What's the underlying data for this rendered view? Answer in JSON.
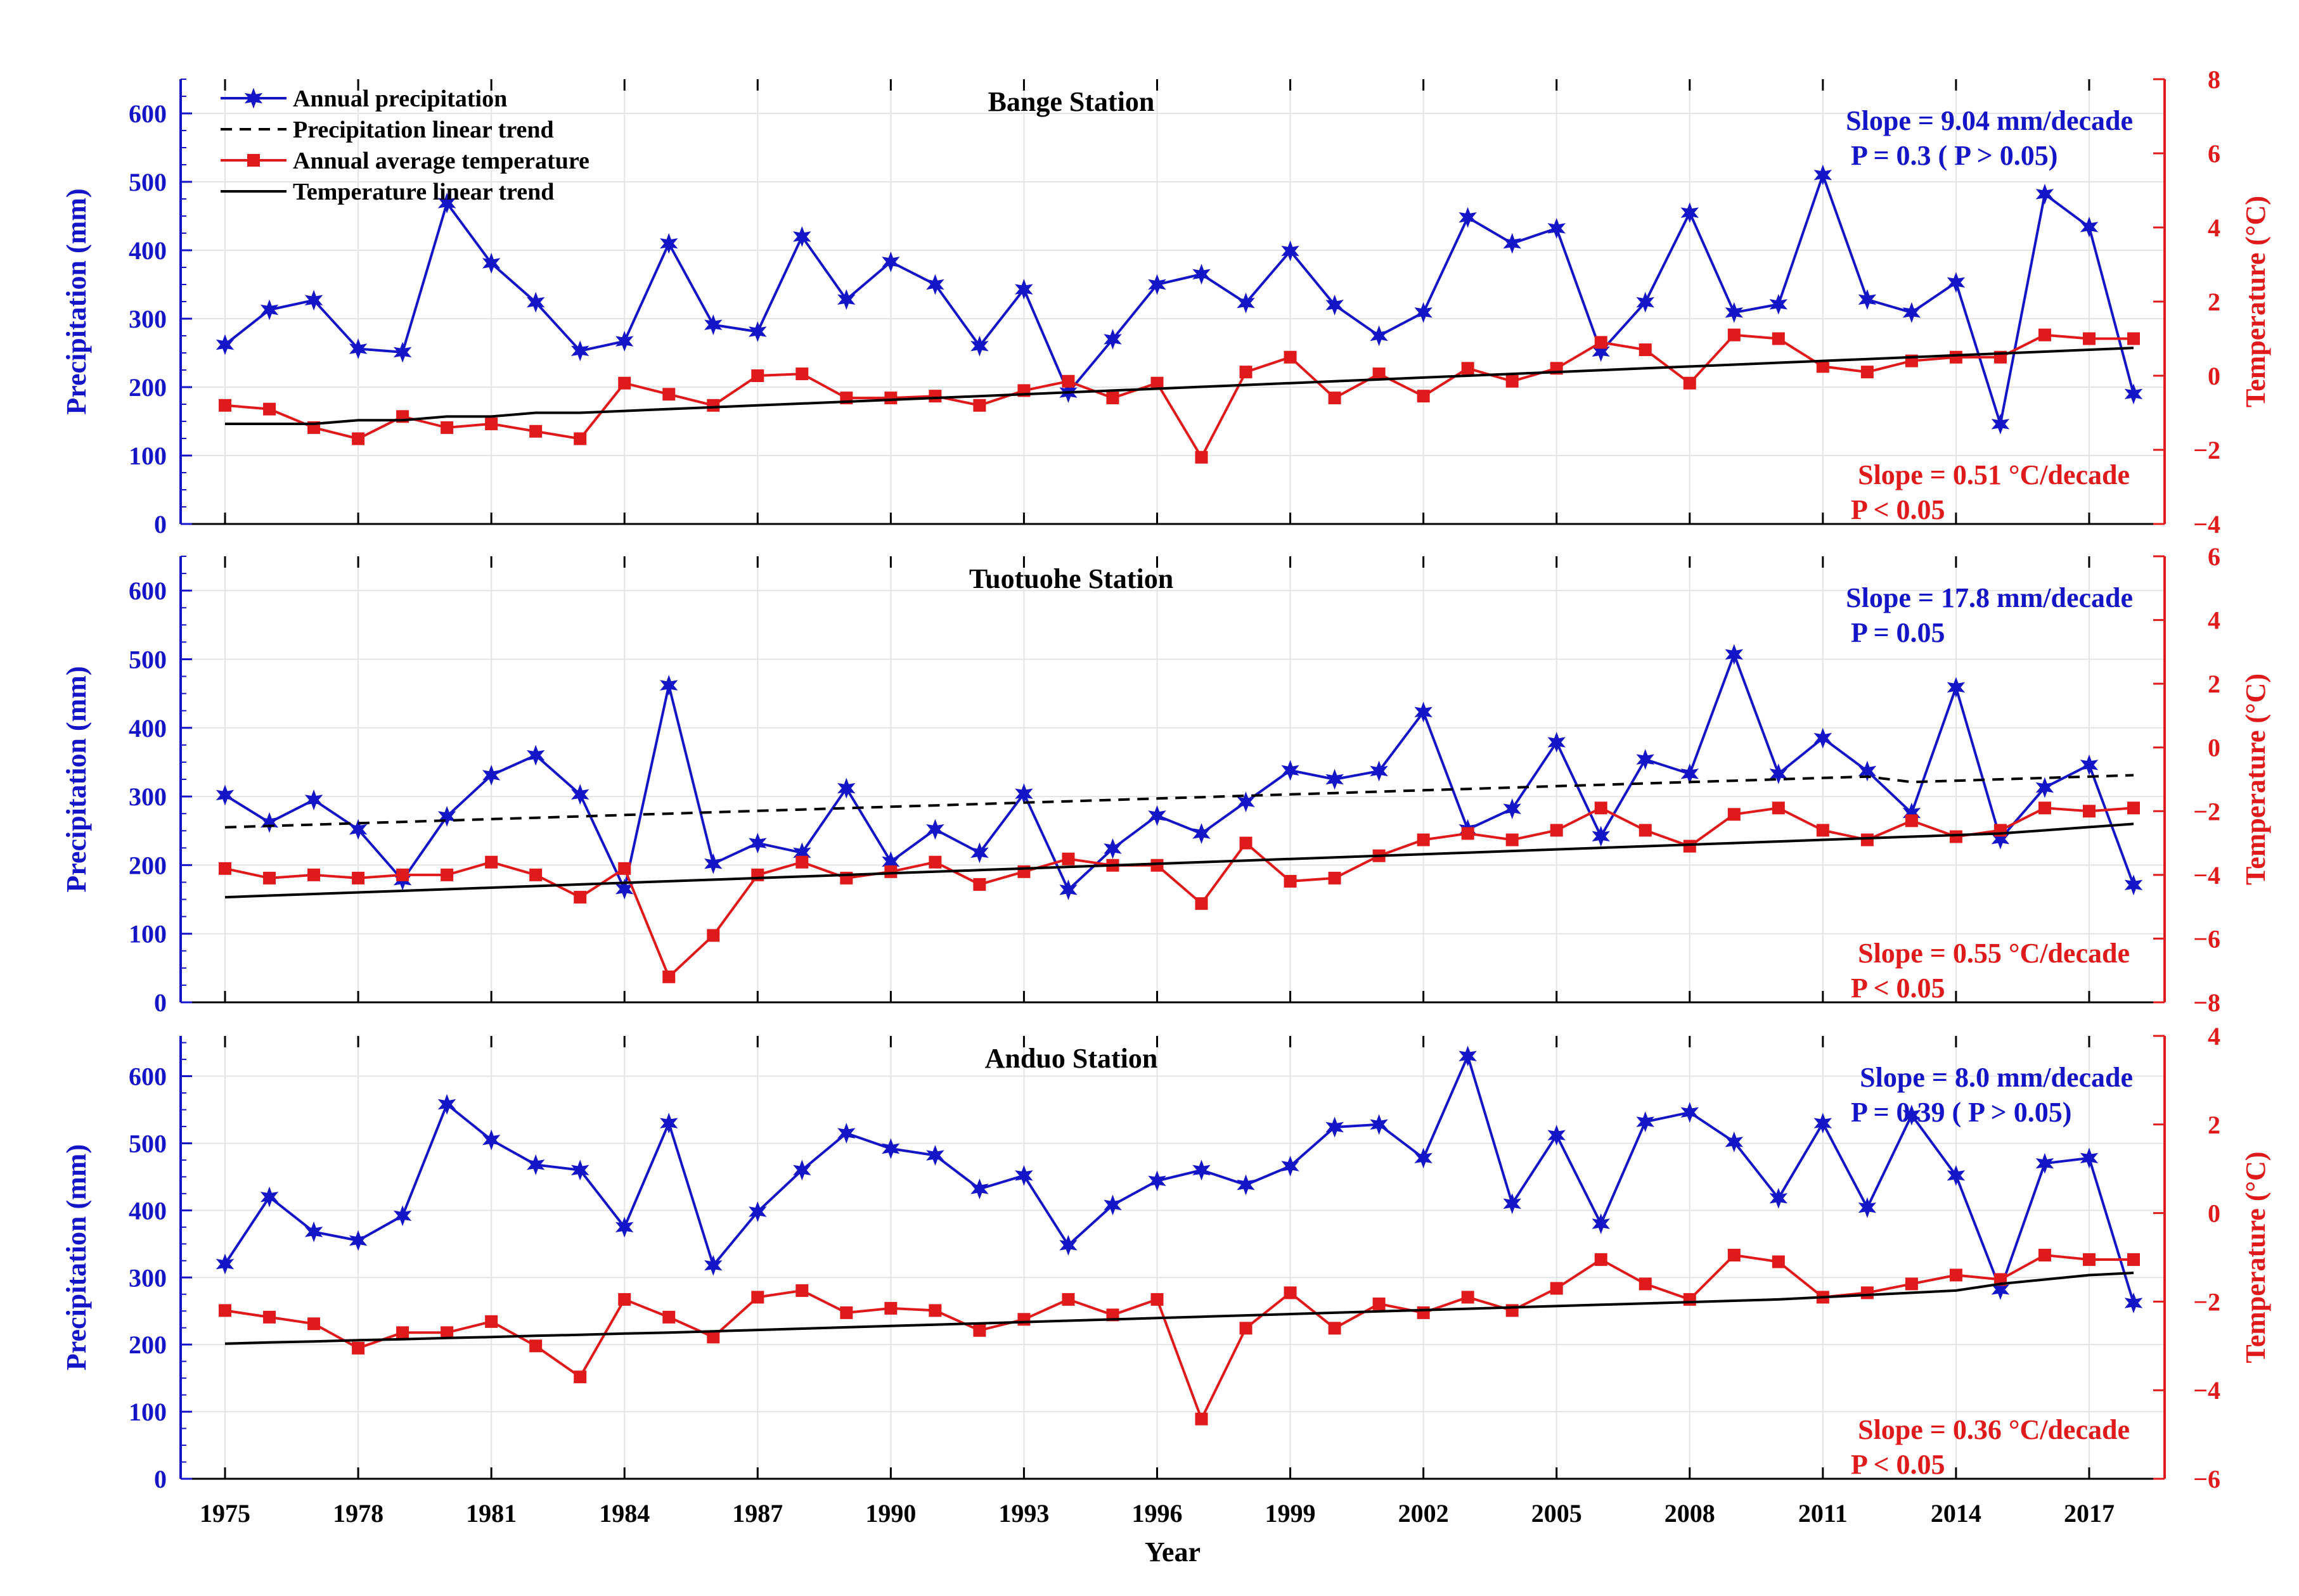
{
  "xlabel": "Year",
  "x_ticks": [
    1975,
    1978,
    1981,
    1984,
    1987,
    1990,
    1993,
    1996,
    1999,
    2002,
    2005,
    2008,
    2011,
    2014,
    2017
  ],
  "colors": {
    "precip": "#1515c8",
    "temp": "#e01a1a",
    "trend": "#000000",
    "grid": "#e4e4e4"
  },
  "legend": {
    "items": [
      {
        "label": "Annual precipitation",
        "style": "precip"
      },
      {
        "label": "Precipitation linear trend",
        "style": "ptrend"
      },
      {
        "label": "Annual average temperature",
        "style": "temp"
      },
      {
        "label": "Temperature linear trend",
        "style": "ttrend"
      }
    ]
  },
  "chart_data": [
    {
      "type": "line",
      "title": "Bange Station",
      "xlabel": "Year",
      "ylabel": "Precipitation (mm)",
      "ylabel_right": "Temperature (°C)",
      "ylim": [
        0,
        650
      ],
      "ylim_right": [
        -4,
        8
      ],
      "yticks": [
        0,
        100,
        200,
        300,
        400,
        500,
        600
      ],
      "yticks_right": [
        -4,
        -2,
        0,
        2,
        4,
        6,
        8
      ],
      "precip_slope": "Slope = 9.04 mm/decade",
      "precip_p": "P    = 0.3 ( P > 0.05)",
      "temp_slope": "Slope = 0.51 °C/decade",
      "temp_p": "P    < 0.05",
      "x": [
        1975,
        1976,
        1977,
        1978,
        1979,
        1980,
        1981,
        1982,
        1983,
        1984,
        1985,
        1986,
        1987,
        1988,
        1989,
        1990,
        1991,
        1992,
        1993,
        1994,
        1995,
        1996,
        1997,
        1998,
        1999,
        2000,
        2001,
        2002,
        2003,
        2004,
        2005,
        2006,
        2007,
        2008,
        2009,
        2010,
        2011,
        2012,
        2013,
        2014,
        2015,
        2016,
        2017,
        2018
      ],
      "series": [
        {
          "name": "Annual precipitation",
          "axis": "left",
          "values": [
            262,
            313,
            327,
            256,
            251,
            469,
            381,
            324,
            253,
            267,
            410,
            291,
            281,
            420,
            328,
            383,
            350,
            260,
            343,
            192,
            270,
            350,
            365,
            323,
            399,
            320,
            275,
            309,
            448,
            410,
            432,
            252,
            324,
            455,
            309,
            321,
            510,
            328,
            309,
            353,
            146,
            482,
            434,
            190
          ]
        },
        {
          "name": "Annual average temperature",
          "axis": "right",
          "values": [
            -0.8,
            -0.9,
            -1.4,
            -1.7,
            -1.1,
            -1.4,
            -1.3,
            -1.5,
            -1.7,
            -0.2,
            -0.5,
            -0.8,
            0,
            0.05,
            -0.6,
            -0.6,
            -0.55,
            -0.8,
            -0.4,
            -0.15,
            -0.6,
            -0.2,
            -2.2,
            0.1,
            0.5,
            -0.6,
            0.05,
            -0.55,
            0.2,
            -0.15,
            0.2,
            0.9,
            0.7,
            -0.2,
            1.1,
            1.0,
            0.25,
            0.1,
            0.4,
            0.5,
            0.5,
            1.1,
            1.0,
            1.0
          ]
        },
        {
          "name": "Temperature linear trend",
          "axis": "right",
          "values": [
            -1.3,
            -1.3,
            -1.3,
            -1.2,
            -1.2,
            -1.1,
            -1.1,
            -1.0,
            -1.0,
            -0.95,
            -0.9,
            -0.85,
            -0.8,
            -0.75,
            -0.7,
            -0.65,
            -0.6,
            -0.55,
            -0.5,
            -0.45,
            -0.4,
            -0.35,
            -0.3,
            -0.25,
            -0.2,
            -0.15,
            -0.1,
            -0.05,
            0,
            0.05,
            0.1,
            0.15,
            0.2,
            0.25,
            0.3,
            0.35,
            0.4,
            0.45,
            0.5,
            0.55,
            0.6,
            0.65,
            0.7,
            0.75
          ]
        }
      ]
    },
    {
      "type": "line",
      "title": "Tuotuohe Station",
      "xlabel": "Year",
      "ylabel": "Precipitation (mm)",
      "ylabel_right": "Temperature (°C)",
      "ylim": [
        0,
        650
      ],
      "ylim_right": [
        -8,
        6
      ],
      "yticks": [
        0,
        100,
        200,
        300,
        400,
        500,
        600
      ],
      "yticks_right": [
        -8,
        -6,
        -4,
        -2,
        0,
        2,
        4,
        6
      ],
      "precip_slope": "Slope = 17.8 mm/decade",
      "precip_p": "P    = 0.05",
      "temp_slope": "Slope = 0.55 °C/decade",
      "temp_p": "P    < 0.05",
      "x": [
        1975,
        1976,
        1977,
        1978,
        1979,
        1980,
        1981,
        1982,
        1983,
        1984,
        1985,
        1986,
        1987,
        1988,
        1989,
        1990,
        1991,
        1992,
        1993,
        1994,
        1995,
        1996,
        1997,
        1998,
        1999,
        2000,
        2001,
        2002,
        2003,
        2004,
        2005,
        2006,
        2007,
        2008,
        2009,
        2010,
        2011,
        2012,
        2013,
        2014,
        2015,
        2016,
        2017,
        2018
      ],
      "series": [
        {
          "name": "Annual precipitation",
          "axis": "left",
          "values": [
            302,
            262,
            295,
            252,
            178,
            271,
            331,
            360,
            303,
            165,
            462,
            202,
            232,
            218,
            312,
            205,
            252,
            218,
            304,
            164,
            224,
            272,
            246,
            292,
            338,
            325,
            337,
            423,
            252,
            282,
            379,
            242,
            354,
            333,
            507,
            333,
            385,
            337,
            276,
            459,
            238,
            313,
            346,
            171
          ]
        },
        {
          "name": "Precipitation linear trend",
          "axis": "left",
          "values": [
            255,
            257,
            259,
            261,
            263,
            265,
            267,
            269,
            271,
            273,
            275,
            277,
            279,
            281,
            283,
            285,
            287,
            289,
            291,
            293,
            295,
            297,
            299,
            301,
            303,
            305,
            307,
            309,
            311,
            313,
            315,
            317,
            319,
            321,
            323,
            325,
            327,
            329,
            321,
            323,
            325,
            327,
            329,
            331
          ]
        },
        {
          "name": "Annual average temperature",
          "axis": "right",
          "values": [
            -3.8,
            -4.1,
            -4.0,
            -4.1,
            -4.0,
            -4.0,
            -3.6,
            -4.0,
            -4.7,
            -3.8,
            -7.2,
            -5.9,
            -4.0,
            -3.6,
            -4.1,
            -3.9,
            -3.6,
            -4.3,
            -3.9,
            -3.5,
            -3.7,
            -3.7,
            -4.9,
            -3.0,
            -4.2,
            -4.1,
            -3.4,
            -2.9,
            -2.7,
            -2.9,
            -2.6,
            -1.9,
            -2.6,
            -3.1,
            -2.1,
            -1.9,
            -2.6,
            -2.9,
            -2.3,
            -2.8,
            -2.6,
            -1.9,
            -2.0,
            -1.9
          ]
        },
        {
          "name": "Temperature linear trend",
          "axis": "right",
          "values": [
            -4.7,
            -4.65,
            -4.6,
            -4.55,
            -4.5,
            -4.45,
            -4.4,
            -4.35,
            -4.3,
            -4.25,
            -4.2,
            -4.15,
            -4.1,
            -4.05,
            -4.0,
            -3.95,
            -3.9,
            -3.85,
            -3.8,
            -3.75,
            -3.7,
            -3.65,
            -3.6,
            -3.55,
            -3.5,
            -3.45,
            -3.4,
            -3.35,
            -3.3,
            -3.25,
            -3.2,
            -3.15,
            -3.1,
            -3.05,
            -3.0,
            -2.95,
            -2.9,
            -2.85,
            -2.8,
            -2.75,
            -2.7,
            -2.6,
            -2.5,
            -2.4
          ]
        }
      ]
    },
    {
      "type": "line",
      "title": "Anduo Station",
      "xlabel": "Year",
      "ylabel": "Precipitation (mm)",
      "ylabel_right": "Temperature (°C)",
      "ylim": [
        0,
        660
      ],
      "ylim_right": [
        -6,
        4
      ],
      "yticks": [
        0,
        100,
        200,
        300,
        400,
        500,
        600
      ],
      "yticks_right": [
        -6,
        -4,
        -2,
        0,
        2,
        4
      ],
      "precip_slope": "Slope = 8.0 mm/decade",
      "precip_p": "P    = 0.39 ( P > 0.05)",
      "temp_slope": "Slope = 0.36 °C/decade",
      "temp_p": "P    < 0.05",
      "x": [
        1975,
        1976,
        1977,
        1978,
        1979,
        1980,
        1981,
        1982,
        1983,
        1984,
        1985,
        1986,
        1987,
        1988,
        1989,
        1990,
        1991,
        1992,
        1993,
        1994,
        1995,
        1996,
        1997,
        1998,
        1999,
        2000,
        2001,
        2002,
        2003,
        2004,
        2005,
        2006,
        2007,
        2008,
        2009,
        2010,
        2011,
        2012,
        2013,
        2014,
        2015,
        2016,
        2017,
        2018
      ],
      "series": [
        {
          "name": "Annual precipitation",
          "axis": "left",
          "values": [
            320,
            420,
            368,
            355,
            392,
            558,
            505,
            468,
            460,
            375,
            530,
            318,
            398,
            460,
            515,
            492,
            482,
            432,
            452,
            348,
            408,
            444,
            460,
            438,
            466,
            524,
            528,
            478,
            630,
            410,
            512,
            380,
            532,
            546,
            502,
            418,
            530,
            404,
            542,
            452,
            282,
            470,
            478,
            262
          ]
        },
        {
          "name": "Annual average temperature",
          "axis": "right",
          "values": [
            -2.2,
            -2.35,
            -2.5,
            -3.05,
            -2.7,
            -2.7,
            -2.45,
            -3.0,
            -3.7,
            -1.95,
            -2.35,
            -2.8,
            -1.9,
            -1.75,
            -2.25,
            -2.15,
            -2.2,
            -2.65,
            -2.4,
            -1.95,
            -2.3,
            -1.95,
            -4.65,
            -2.6,
            -1.8,
            -2.6,
            -2.05,
            -2.25,
            -1.9,
            -2.2,
            -1.7,
            -1.05,
            -1.6,
            -1.95,
            -0.95,
            -1.1,
            -1.9,
            -1.8,
            -1.6,
            -1.4,
            -1.5,
            -0.95,
            -1.05,
            -1.05
          ]
        },
        {
          "name": "Temperature linear trend",
          "axis": "right",
          "values": [
            -2.95,
            -2.92,
            -2.9,
            -2.87,
            -2.85,
            -2.82,
            -2.8,
            -2.77,
            -2.75,
            -2.72,
            -2.7,
            -2.67,
            -2.64,
            -2.61,
            -2.58,
            -2.55,
            -2.52,
            -2.49,
            -2.46,
            -2.43,
            -2.4,
            -2.37,
            -2.34,
            -2.31,
            -2.28,
            -2.25,
            -2.22,
            -2.19,
            -2.16,
            -2.13,
            -2.1,
            -2.07,
            -2.04,
            -2.01,
            -1.98,
            -1.95,
            -1.9,
            -1.85,
            -1.8,
            -1.75,
            -1.6,
            -1.5,
            -1.4,
            -1.35
          ]
        }
      ]
    }
  ]
}
